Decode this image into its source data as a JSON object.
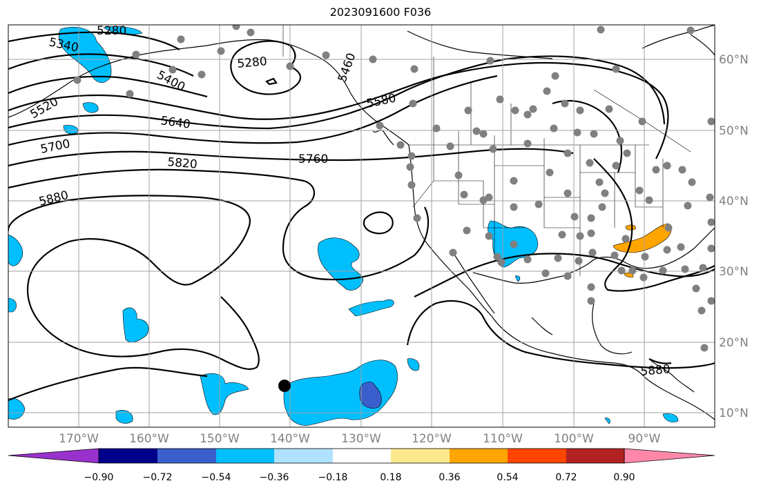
{
  "title": "2023091600 F036",
  "lon_ticks": [
    "170°W",
    "160°W",
    "150°W",
    "140°W",
    "130°W",
    "120°W",
    "110°W",
    "100°W",
    "90°W"
  ],
  "lat_ticks": [
    "60°N",
    "50°N",
    "40°N",
    "30°N",
    "20°N",
    "10°N"
  ],
  "contour_labels": [
    "5280",
    "5340",
    "5280",
    "5400",
    "5520",
    "5460",
    "5580",
    "5640",
    "5700",
    "5760",
    "5820",
    "5880",
    "5880"
  ],
  "colorbar": {
    "ticks": [
      "−0.90",
      "−0.72",
      "−0.54",
      "−0.36",
      "−0.18",
      "0.18",
      "0.36",
      "0.54",
      "0.72",
      "0.90"
    ],
    "colors": [
      "#9932CC",
      "#00008B",
      "#3A5FCD",
      "#00BFFF",
      "#B0E2FF",
      "#FFFFFF",
      "#FCE98C",
      "#FFA500",
      "#FF4500",
      "#B22222",
      "#FF88AA"
    ]
  },
  "colors": {
    "station": "#808080",
    "grid": "#a0a0a0",
    "land_line": "#000000",
    "contour": "#000000",
    "neg_field": "#00BFFF",
    "neg_field_strong": "#3A5FCD",
    "pos_field": "#FFA500"
  }
}
